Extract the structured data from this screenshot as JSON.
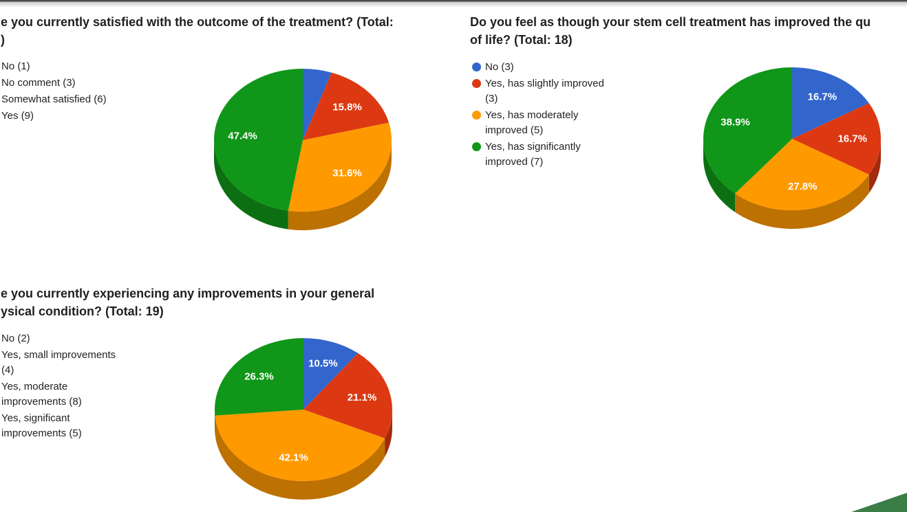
{
  "page": {
    "background": "#ffffff"
  },
  "window_top_edge": {
    "dark_line_color": "#4a4a4a",
    "fade_color": "#cccccc"
  },
  "corner_shape": {
    "shape": "triangle",
    "color": "#3b7d47"
  },
  "palette": {
    "blue": "#3366cc",
    "red": "#dc3912",
    "orange": "#ff9900",
    "green": "#109618"
  },
  "chart_data": [
    {
      "type": "pie",
      "is_3d": true,
      "legend_position": "left",
      "title_lines": [
        "e you currently satisfied with the outcome of the treatment? (Total:",
        ")"
      ],
      "legend": [
        "No (1)",
        "No comment (3)",
        "Somewhat satisfied (6)",
        "Yes (9)"
      ],
      "categories": [
        "No",
        "No comment",
        "Somewhat satisfied",
        "Yes"
      ],
      "values": [
        1,
        3,
        6,
        9
      ],
      "percent_labels": [
        "",
        "15.8%",
        "31.6%",
        "47.4%"
      ],
      "colors": [
        "#3366cc",
        "#dc3912",
        "#ff9900",
        "#109618"
      ],
      "label_color": "#ffffff"
    },
    {
      "type": "pie",
      "is_3d": true,
      "legend_position": "left",
      "total": 18,
      "title_lines": [
        "Do you feel as though your stem cell treatment has improved the qu",
        "of life? (Total: 18)"
      ],
      "legend": [
        "No (3)",
        "Yes, has slightly improved (3)",
        "Yes, has moderately improved (5)",
        "Yes, has significantly improved (7)"
      ],
      "categories": [
        "No",
        "Yes, has slightly improved",
        "Yes, has moderately improved",
        "Yes, has significantly improved"
      ],
      "values": [
        3,
        3,
        5,
        7
      ],
      "percent_labels": [
        "16.7%",
        "16.7%",
        "27.8%",
        "38.9%"
      ],
      "colors": [
        "#3366cc",
        "#dc3912",
        "#ff9900",
        "#109618"
      ],
      "label_color": "#ffffff"
    },
    {
      "type": "pie",
      "is_3d": true,
      "legend_position": "left",
      "total": 19,
      "title_lines": [
        "e you currently experiencing any improvements in your general",
        "ysical condition? (Total: 19)"
      ],
      "legend": [
        "No (2)",
        "Yes, small improvements (4)",
        "Yes, moderate improvements (8)",
        "Yes, significant improvements (5)"
      ],
      "categories": [
        "No",
        "Yes, small improvements",
        "Yes, moderate improvements",
        "Yes, significant improvements"
      ],
      "values": [
        2,
        4,
        8,
        5
      ],
      "percent_labels": [
        "10.5%",
        "21.1%",
        "42.1%",
        "26.3%"
      ],
      "colors": [
        "#3366cc",
        "#dc3912",
        "#ff9900",
        "#109618"
      ],
      "label_color": "#ffffff"
    }
  ]
}
